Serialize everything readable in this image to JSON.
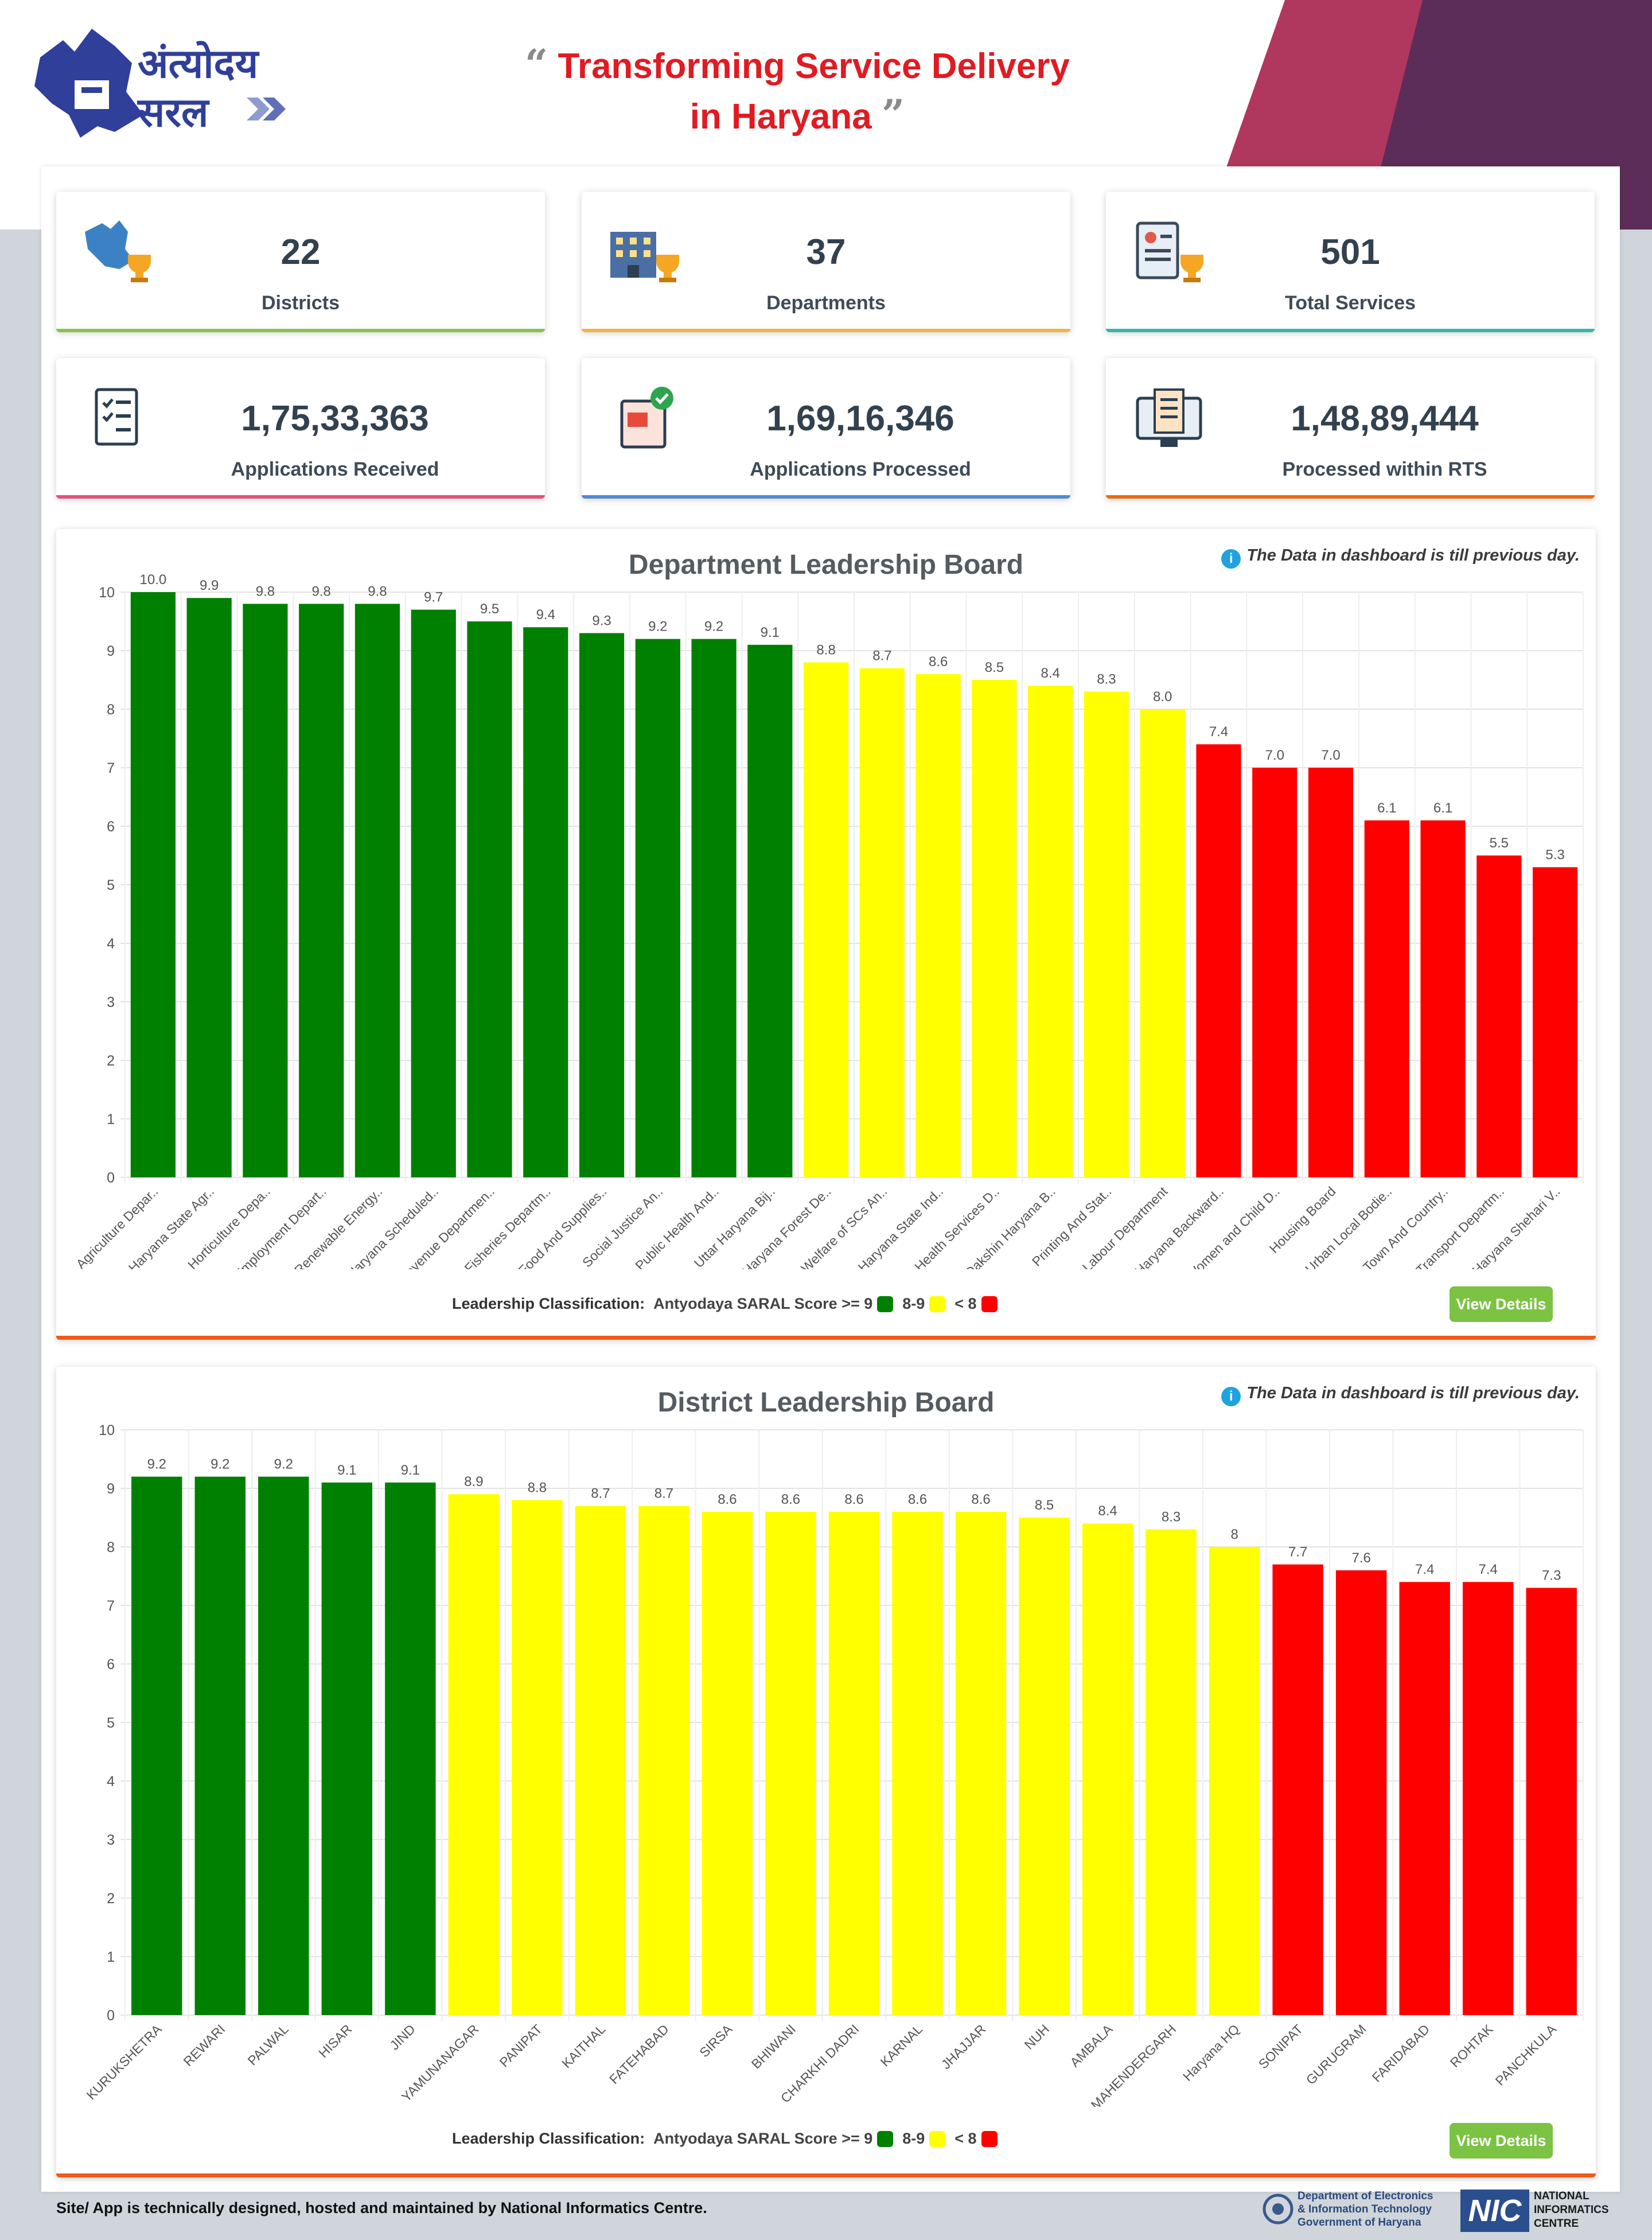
{
  "header": {
    "logo_line1": "अंत्योदय",
    "logo_line2": "सरल",
    "tagline_line1": "Transforming Service Delivery",
    "tagline_line2": "in Haryana",
    "quote_open": "“",
    "quote_close": "”"
  },
  "colors": {
    "green": "#008000",
    "yellow": "#ffff00",
    "red": "#ff0000",
    "accent": "#e01b22"
  },
  "stats": [
    {
      "value": "22",
      "label": "Districts",
      "icon": "haryana-map-trophy-icon",
      "color": "#8bc34a"
    },
    {
      "value": "37",
      "label": "Departments",
      "icon": "building-trophy-icon",
      "color": "#f0b445"
    },
    {
      "value": "501",
      "label": "Total Services",
      "icon": "document-trophy-icon",
      "color": "#35b8a6"
    },
    {
      "value": "1,75,33,363",
      "label": "Applications Received",
      "icon": "checklist-icon",
      "color": "#e3507a"
    },
    {
      "value": "1,69,16,346",
      "label": "Applications Processed",
      "icon": "processed-document-icon",
      "color": "#4f8bd6"
    },
    {
      "value": "1,48,89,444",
      "label": "Processed within RTS",
      "icon": "monitor-document-icon",
      "color": "#ee6a10"
    }
  ],
  "note": "The Data in dashboard is till previous day.",
  "legend": {
    "label": "Leadership Classification:",
    "text": "Antyodaya SARAL Score >= 9",
    "mid": "8-9",
    "low": "< 8"
  },
  "view_details": "View Details",
  "chart_data": [
    {
      "type": "bar",
      "title": "Department Leadership Board",
      "ylim": [
        0,
        10
      ],
      "yticks": [
        "0",
        "1",
        "2",
        "3",
        "4",
        "5",
        "6",
        "7",
        "8",
        "9",
        "10"
      ],
      "categories": [
        "Agriculture Depar..",
        "Haryana State Agr..",
        "Horticulture Depa..",
        "Employment Depart..",
        "Renewable Energy..",
        "Haryana Scheduled..",
        "Revenue Departmen..",
        "Fisheries Departm..",
        "Food And Supplies..",
        "Social Justice An..",
        "Public Health And..",
        "Uttar Haryana Bij..",
        "Haryana Forest De..",
        "Welfare of SCs An..",
        "Haryana State Ind..",
        "Health Services D..",
        "Dakshin Haryana B..",
        "Printing And Stat..",
        "Labour Department",
        "Haryana Backward..",
        "Women and Child D..",
        "Housing Board",
        "Urban Local Bodie..",
        "Town And Country..",
        "Transport Departm..",
        "Haryana Shehari V.."
      ],
      "values": [
        10.0,
        9.9,
        9.8,
        9.8,
        9.8,
        9.7,
        9.5,
        9.4,
        9.3,
        9.2,
        9.2,
        9.1,
        8.8,
        8.7,
        8.6,
        8.5,
        8.4,
        8.3,
        8.0,
        7.4,
        7.0,
        7.0,
        6.1,
        6.1,
        5.5,
        5.3
      ],
      "labels": [
        "10.0",
        "9.9",
        "9.8",
        "9.8",
        "9.8",
        "9.7",
        "9.5",
        "9.4",
        "9.3",
        "9.2",
        "9.2",
        "9.1",
        "8.8",
        "8.7",
        "8.6",
        "8.5",
        "8.4",
        "8.3",
        "8.0",
        "7.4",
        "7.0",
        "7.0",
        "6.1",
        "6.1",
        "5.5",
        "5.3"
      ]
    },
    {
      "type": "bar",
      "title": "District Leadership Board",
      "ylim": [
        0,
        10
      ],
      "yticks": [
        "0",
        "1",
        "2",
        "3",
        "4",
        "5",
        "6",
        "7",
        "8",
        "9",
        "10"
      ],
      "categories": [
        "KURUKSHETRA",
        "REWARI",
        "PALWAL",
        "HISAR",
        "JIND",
        "YAMUNANAGAR",
        "PANIPAT",
        "KAITHAL",
        "FATEHABAD",
        "SIRSA",
        "BHIWANI",
        "CHARKHI DADRI",
        "KARNAL",
        "JHAJJAR",
        "NUH",
        "AMBALA",
        "MAHENDERGARH",
        "Haryana HQ",
        "SONIPAT",
        "GURUGRAM",
        "FARIDABAD",
        "ROHTAK",
        "PANCHKULA"
      ],
      "values": [
        9.2,
        9.2,
        9.2,
        9.1,
        9.1,
        8.9,
        8.8,
        8.7,
        8.7,
        8.6,
        8.6,
        8.6,
        8.6,
        8.6,
        8.5,
        8.4,
        8.3,
        8,
        7.7,
        7.6,
        7.4,
        7.4,
        7.3
      ],
      "labels": [
        "9.2",
        "9.2",
        "9.2",
        "9.1",
        "9.1",
        "8.9",
        "8.8",
        "8.7",
        "8.7",
        "8.6",
        "8.6",
        "8.6",
        "8.6",
        "8.6",
        "8.5",
        "8.4",
        "8.3",
        "8",
        "7.7",
        "7.6",
        "7.4",
        "7.4",
        "7.3"
      ]
    }
  ],
  "footer": {
    "text": "Site/ App is technically designed, hosted and maintained by National Informatics Centre.",
    "dept_line1": "Department of Electronics",
    "dept_line2": "& Information Technology",
    "dept_line3": "Government of Haryana",
    "nic_abbr": "NIC",
    "nic_line1": "NATIONAL",
    "nic_line2": "INFORMATICS",
    "nic_line3": "CENTRE"
  }
}
